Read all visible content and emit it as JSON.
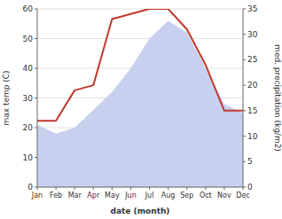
{
  "chart_data": {
    "type": "area",
    "categories": [
      "Jan",
      "Feb",
      "Mar",
      "Apr",
      "May",
      "Jun",
      "Jul",
      "Aug",
      "Sep",
      "Oct",
      "Nov",
      "Dec"
    ],
    "xlabel": "date (month)",
    "ylabel": "max temp (C)",
    "y2label": "med. precipitation (kg/m2)",
    "series": [
      {
        "type": "area",
        "color": "#c8d0f0",
        "values": [
          21,
          18,
          20,
          26,
          32,
          40,
          50,
          56,
          52,
          40,
          28,
          25
        ]
      },
      {
        "type": "line",
        "axis": "y2",
        "color": "#c0392b",
        "values": [
          13,
          13,
          19,
          20,
          33,
          34,
          35,
          35,
          31,
          24,
          15,
          15
        ]
      }
    ],
    "ylim": [
      0,
      60
    ],
    "yticks": [
      0,
      10,
      20,
      30,
      40,
      50,
      60
    ],
    "y2lim": [
      0,
      35
    ],
    "y2ticks": [
      0,
      5,
      10,
      15,
      20,
      25,
      30,
      35
    ],
    "grid": true
  }
}
